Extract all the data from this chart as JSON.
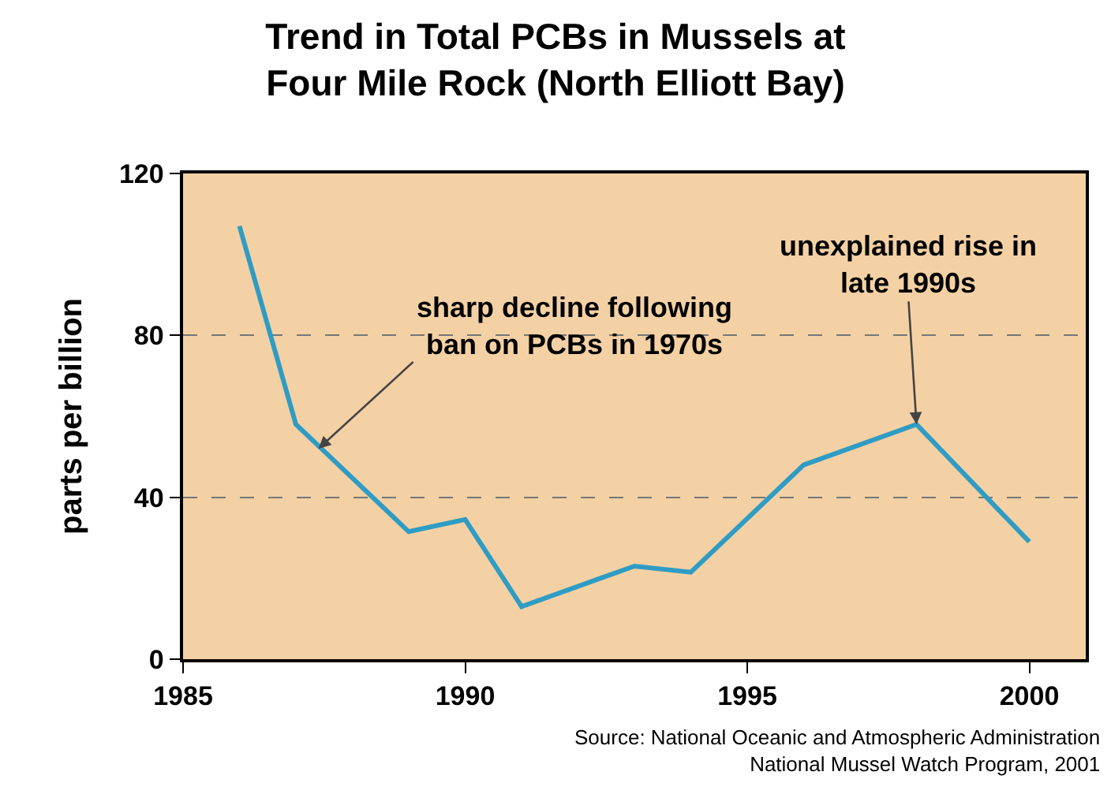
{
  "chart_data": {
    "type": "line",
    "title": "Trend in Total PCBs in Mussels at\nFour Mile Rock (North Elliott Bay)",
    "ylabel": "parts per billion",
    "x": [
      1986,
      1987,
      1989,
      1990,
      1991,
      1992,
      1993,
      1994,
      1996,
      1998,
      2000
    ],
    "series": [
      {
        "color": "#2f9cc4",
        "values": [
          107,
          58,
          31.5,
          34.5,
          13,
          18,
          23,
          21.5,
          48,
          58,
          29
        ]
      }
    ],
    "xlim": [
      1985,
      2001
    ],
    "xticks": [
      1985,
      1990,
      1995,
      2000
    ],
    "ylim": [
      0,
      120
    ],
    "yticks": [
      0,
      40,
      80,
      120
    ],
    "grid": "y",
    "marker": "none",
    "line_style": "solid",
    "annotations": [
      {
        "text": "sharp decline following\nban on PCBs in 1970s",
        "x": 1987.4,
        "y": 52
      },
      {
        "text": "unexplained rise in\nlate 1990s",
        "x": 1998,
        "y": 58
      },
      "Source: National Oceanic and Atmospheric Administration\nNational Mussel Watch Program, 2001"
    ]
  }
}
